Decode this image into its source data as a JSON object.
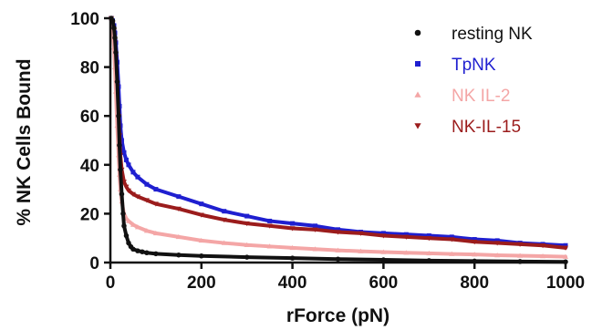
{
  "chart_data": {
    "type": "scatter",
    "xlabel": "rForce (pN)",
    "ylabel": "% NK Cells Bound",
    "xlim": [
      0,
      1000
    ],
    "ylim": [
      0,
      100
    ],
    "xticks": [
      0,
      200,
      400,
      600,
      800,
      1000
    ],
    "yticks": [
      0,
      20,
      40,
      60,
      80,
      100
    ],
    "grid": false,
    "legend_position": "top-right",
    "series": [
      {
        "name": "resting NK",
        "color": "#111111",
        "marker": "circle",
        "x": [
          2,
          5,
          8,
          10,
          12,
          15,
          18,
          20,
          22,
          25,
          28,
          30,
          35,
          40,
          45,
          50,
          60,
          70,
          80,
          100,
          150,
          200,
          300,
          400,
          500,
          600,
          700,
          800,
          900,
          1000
        ],
        "y": [
          100,
          99,
          96,
          92,
          86,
          74,
          60,
          48,
          38,
          28,
          20,
          15,
          11,
          8,
          6.5,
          5.5,
          4.8,
          4.4,
          4.0,
          3.6,
          3.1,
          2.7,
          2.2,
          1.8,
          1.4,
          1.1,
          0.8,
          0.6,
          0.4,
          0.3
        ]
      },
      {
        "name": "TpNK",
        "color": "#1f1fd0",
        "marker": "square",
        "x": [
          2,
          5,
          8,
          10,
          12,
          15,
          18,
          20,
          22,
          25,
          30,
          35,
          40,
          50,
          60,
          80,
          100,
          150,
          200,
          250,
          300,
          350,
          400,
          450,
          500,
          550,
          600,
          650,
          700,
          750,
          800,
          850,
          900,
          950,
          1000
        ],
        "y": [
          100,
          99,
          97,
          94,
          90,
          82,
          72,
          64,
          56,
          50,
          45,
          42,
          40,
          37,
          35,
          32,
          30,
          27,
          24,
          21,
          19,
          17,
          16,
          15,
          13.5,
          12.5,
          12,
          11.5,
          11,
          10.5,
          9.5,
          9,
          8,
          7.5,
          7
        ]
      },
      {
        "name": "NK IL-2",
        "color": "#f4a6a6",
        "marker": "triangle-up",
        "x": [
          2,
          5,
          8,
          10,
          12,
          15,
          18,
          20,
          22,
          25,
          30,
          35,
          40,
          50,
          60,
          80,
          100,
          150,
          200,
          250,
          300,
          350,
          400,
          450,
          500,
          550,
          600,
          650,
          700,
          750,
          800,
          850,
          900,
          950,
          1000
        ],
        "y": [
          100,
          96,
          88,
          80,
          70,
          56,
          44,
          36,
          30,
          25,
          20,
          18,
          17,
          15.5,
          14.5,
          13,
          12,
          10.5,
          9,
          8,
          7.2,
          6.6,
          6,
          5.5,
          5,
          4.6,
          4.3,
          4,
          3.8,
          3.5,
          3.3,
          3,
          2.8,
          2.6,
          2.4
        ]
      },
      {
        "name": "NK-IL-15",
        "color": "#9b1c1c",
        "marker": "triangle-down",
        "x": [
          2,
          5,
          8,
          10,
          12,
          15,
          18,
          20,
          22,
          25,
          30,
          35,
          40,
          50,
          60,
          80,
          100,
          150,
          200,
          250,
          300,
          350,
          400,
          450,
          500,
          550,
          600,
          650,
          700,
          750,
          800,
          850,
          900,
          950,
          1000
        ],
        "y": [
          100,
          98,
          95,
          90,
          84,
          72,
          60,
          52,
          44,
          38,
          33,
          31,
          29.5,
          28,
          27,
          25.5,
          24,
          22,
          19.5,
          17.5,
          16,
          15,
          14,
          13.5,
          12.5,
          12,
          11,
          10.5,
          10,
          9.5,
          8.5,
          8,
          7.5,
          7,
          6
        ]
      }
    ]
  }
}
